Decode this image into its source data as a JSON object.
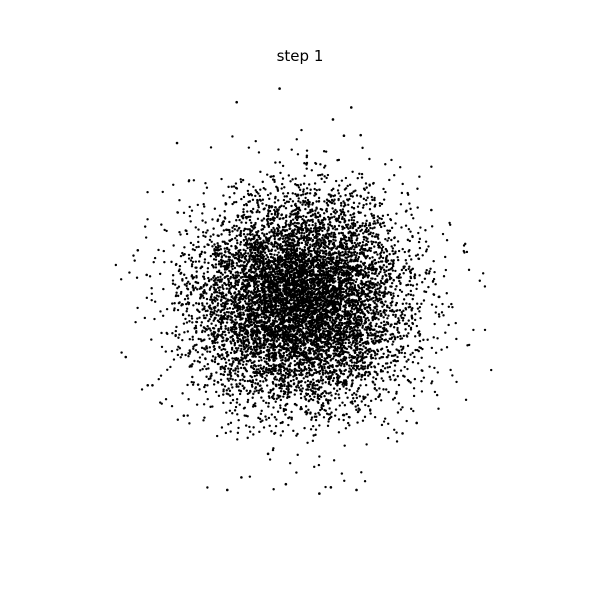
{
  "chart_data": {
    "type": "scatter",
    "title": "step 1",
    "xlabel": "",
    "ylabel": "",
    "axes_visible": false,
    "grid": false,
    "legend": "none",
    "xlim": [
      -4.3,
      4.3
    ],
    "ylim": [
      -4.3,
      4.3
    ],
    "marker_color": "#000000",
    "distribution": {
      "kind": "isotropic-gaussian",
      "center": [
        0,
        0
      ],
      "std": 1.0,
      "count": 9000,
      "seed": 1
    },
    "series": [
      {
        "points": [
          [
            -3.33,
            -1.09
          ],
          [
            -2.91,
            -1.63
          ],
          [
            -2.82,
            -1.63
          ],
          [
            -2.35,
            3.0
          ],
          [
            -1.21,
            3.78
          ],
          [
            -0.39,
            4.04
          ],
          [
            0.63,
            3.45
          ],
          [
            0.84,
            3.14
          ],
          [
            0.98,
            3.68
          ],
          [
            1.16,
            3.15
          ],
          [
            2.51,
            1.72
          ],
          [
            2.66,
            0.06
          ],
          [
            2.23,
            -2.35
          ],
          [
            1.96,
            -2.55
          ],
          [
            1.08,
            -3.63
          ],
          [
            0.59,
            -3.58
          ],
          [
            0.37,
            -3.7
          ],
          [
            -0.27,
            -3.52
          ],
          [
            -1.12,
            -3.39
          ],
          [
            -2.22,
            -2.21
          ],
          [
            -1.39,
            -3.63
          ],
          [
            -0.61,
            -2.94
          ],
          [
            -2.93,
            0.48
          ],
          [
            -3.1,
            0.95
          ]
        ]
      }
    ]
  }
}
